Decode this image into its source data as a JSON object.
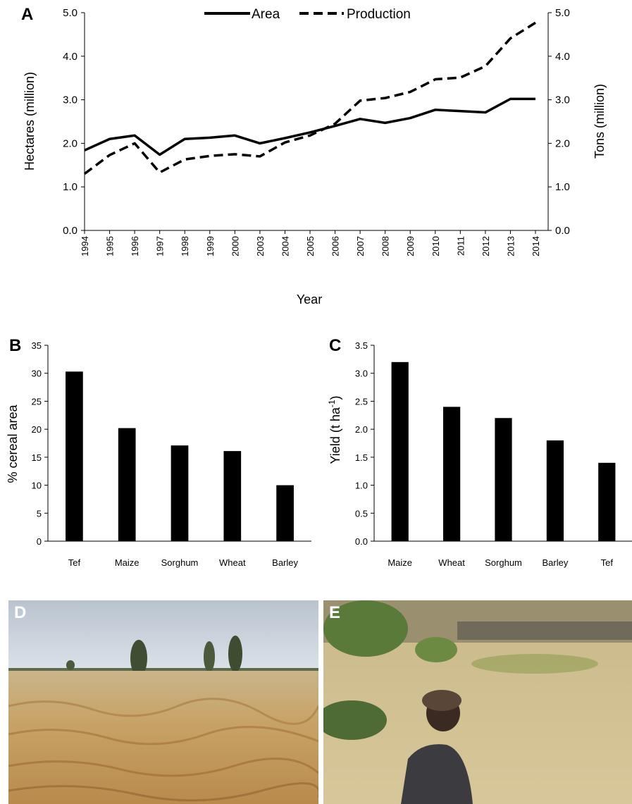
{
  "panels": {
    "a": "A",
    "b": "B",
    "c": "C",
    "d": "D",
    "e": "E"
  },
  "chart_data": [
    {
      "type": "line",
      "xlabel": "Year",
      "ylabel_left": "Hectares (million)",
      "ylabel_right": "Tons (million)",
      "ylim": [
        0,
        5
      ],
      "y_ticks": [
        "0.0",
        "1.0",
        "2.0",
        "3.0",
        "4.0",
        "5.0"
      ],
      "legend_placement": "top-center",
      "x": [
        "1994",
        "1995",
        "1996",
        "1997",
        "1998",
        "1999",
        "2000",
        "2003",
        "2004",
        "2005",
        "2006",
        "2007",
        "2008",
        "2009",
        "2010",
        "2011",
        "2012",
        "2013",
        "2014"
      ],
      "series": [
        {
          "name": "Area",
          "style": "solid",
          "values": [
            1.84,
            2.1,
            2.18,
            1.74,
            2.1,
            2.13,
            2.18,
            2.0,
            2.12,
            2.25,
            2.4,
            2.56,
            2.47,
            2.58,
            2.77,
            2.74,
            2.71,
            3.02,
            3.02
          ]
        },
        {
          "name": "Production",
          "style": "dashed",
          "values": [
            1.3,
            1.73,
            2.0,
            1.33,
            1.63,
            1.71,
            1.75,
            1.7,
            2.02,
            2.18,
            2.45,
            2.98,
            3.04,
            3.18,
            3.47,
            3.51,
            3.77,
            4.41,
            4.77
          ]
        }
      ]
    },
    {
      "type": "bar",
      "categories": [
        "Tef",
        "Maize",
        "Sorghum",
        "Wheat",
        "Barley"
      ],
      "values": [
        30.3,
        20.2,
        17.1,
        16.1,
        10.0
      ],
      "ylabel": "% cereal area",
      "ylim": [
        0,
        35
      ],
      "y_ticks": [
        "0",
        "5",
        "10",
        "15",
        "20",
        "25",
        "30",
        "35"
      ]
    },
    {
      "type": "bar",
      "categories": [
        "Maize",
        "Wheat",
        "Sorghum",
        "Barley",
        "Tef"
      ],
      "values": [
        3.2,
        2.4,
        2.2,
        1.8,
        1.4
      ],
      "ylabel_main": "Yield (t ha",
      "ylabel_sup": "-1",
      "ylabel_end": ")",
      "ylim": [
        0,
        3.5
      ],
      "y_ticks": [
        "0.0",
        "0.5",
        "1.0",
        "1.5",
        "2.0",
        "2.5",
        "3.0",
        "3.5"
      ]
    }
  ],
  "colors": {
    "line": "#000000",
    "bar": "#000000",
    "sky": "#c9d3dd",
    "field": "#c9a66b"
  }
}
